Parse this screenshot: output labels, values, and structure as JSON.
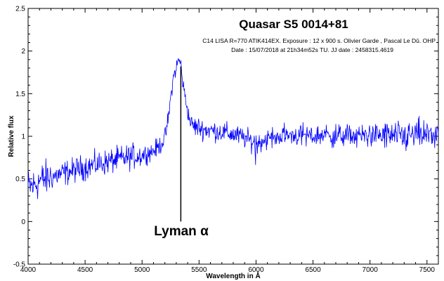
{
  "chart_data": {
    "type": "line",
    "title": "Quasar S5 0014+81",
    "subtitle_line1": "C14 LISA R=770 ATIK414EX. Exposure : 12 x 900 s. Olivier Garde , Pascal Le Dû. OHP",
    "subtitle_line2": "Date : 15/07/2018 at 21h34m52s TU. JJ date : 2458315.4619",
    "xlabel": "Wavelength in Å",
    "ylabel": "Relative flux",
    "xlim": [
      4000,
      7600
    ],
    "ylim": [
      -0.5,
      2.5
    ],
    "xticks": [
      4000,
      4500,
      5000,
      5500,
      6000,
      6500,
      7000,
      7500
    ],
    "xtick_labels": [
      "4000",
      "4500",
      "5000",
      "5500",
      "6000",
      "6500",
      "7000",
      "7500"
    ],
    "yticks": [
      -0.5,
      0,
      0.5,
      1,
      1.5,
      2,
      2.5
    ],
    "ytick_labels": [
      "-0.5",
      "0",
      "0.5",
      "1",
      "1.5",
      "2",
      "2.5"
    ],
    "grid": false,
    "line_color": "#0000ff",
    "series": [
      {
        "x": [
          4000,
          4050,
          4100,
          4200,
          4300,
          4400,
          4500,
          4600,
          4700,
          4800,
          4900,
          5000,
          5100,
          5150,
          5200,
          5230,
          5260,
          5280,
          5300,
          5320,
          5340,
          5360,
          5380,
          5400,
          5420,
          5450,
          5500,
          5550,
          5600,
          5700,
          5800,
          5900,
          6000,
          6100,
          6200,
          6300,
          6400,
          6500,
          6600,
          6700,
          6800,
          6900,
          7000,
          7100,
          7200,
          7300,
          7400,
          7500,
          7600
        ],
        "y": [
          0.4,
          0.42,
          0.48,
          0.52,
          0.56,
          0.6,
          0.64,
          0.67,
          0.7,
          0.73,
          0.76,
          0.78,
          0.83,
          0.88,
          0.98,
          1.2,
          1.55,
          1.72,
          1.8,
          1.9,
          1.85,
          1.6,
          1.45,
          1.3,
          1.18,
          1.12,
          1.1,
          1.08,
          1.07,
          1.05,
          1.02,
          0.98,
          0.92,
          0.97,
          1.0,
          1.02,
          1.01,
          1.0,
          1.02,
          1.0,
          1.01,
          1.0,
          1.02,
          1.01,
          1.0,
          0.99,
          1.02,
          1.01,
          1.03
        ]
      }
    ],
    "annotation": {
      "text": "Lyman α",
      "x": 5340,
      "line_from_y": 0.0,
      "line_to_y": 1.82
    }
  }
}
